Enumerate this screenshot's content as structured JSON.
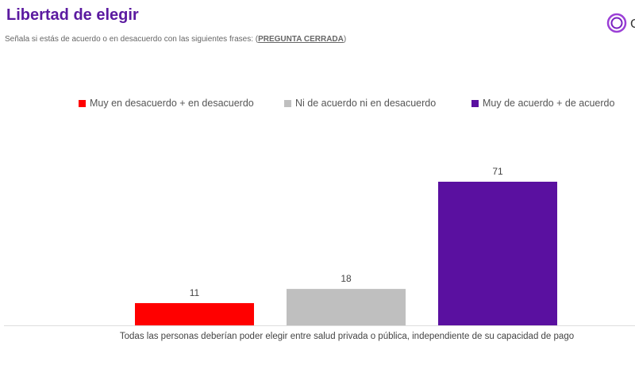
{
  "header": {
    "title": "Libertad de elegir",
    "subtitle_prefix": "Señala si estás de acuerdo o en desacuerdo con las siguientes frases: (",
    "subtitle_emph": "PREGUNTA CERRADA",
    "subtitle_suffix": ")",
    "logo_letter": "C"
  },
  "chart_data": {
    "type": "bar",
    "categories": [
      "Todas las personas deberían poder elegir entre salud privada o pública, independiente de su capacidad de pago"
    ],
    "series": [
      {
        "name": "Muy en desacuerdo + en desacuerdo",
        "values": [
          11
        ],
        "color": "#ff0000"
      },
      {
        "name": "Ni de acuerdo ni en desacuerdo",
        "values": [
          18
        ],
        "color": "#bfbfbf"
      },
      {
        "name": "Muy de acuerdo + de acuerdo",
        "values": [
          71
        ],
        "color": "#5a10a0"
      }
    ],
    "ylim": [
      0,
      80
    ],
    "grid": false,
    "legend": "top",
    "data_labels": [
      "11",
      "18",
      "71"
    ]
  }
}
